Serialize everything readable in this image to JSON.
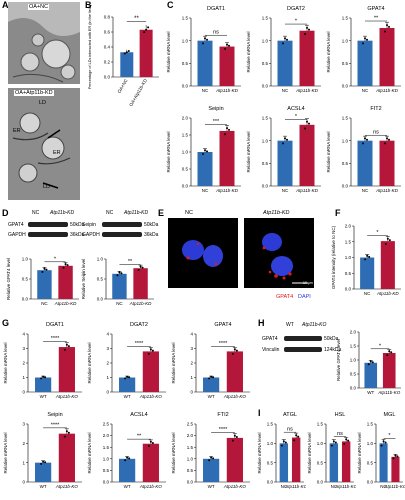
{
  "panels": {
    "A": "A",
    "B": "B",
    "C": "C",
    "D": "D",
    "E": "E",
    "F": "F",
    "G": "G",
    "H": "H",
    "I": "I"
  },
  "panelA": {
    "top_label": "OA+NC",
    "bottom_label": "OA+Atp11b-KD",
    "ld": "LD",
    "er": "ER"
  },
  "panelB": {
    "ylabel": "Percentage of LDs interacted with ER (in the field)",
    "sig": "**",
    "categories": [
      "OA+NC",
      "OA+Atp11b-KD"
    ],
    "values": [
      0.33,
      0.63
    ],
    "ylim": [
      0,
      0.8
    ],
    "ticks": [
      "0.0",
      "0.2",
      "0.4",
      "0.6",
      "0.8"
    ]
  },
  "panelE": {
    "left": "NC",
    "right": "Atp11b-KD",
    "gpat4": "GPAT4",
    "dapi": "DAPI",
    "scalebar": "10 µm"
  },
  "panelD": {
    "left": {
      "hdr_nc": "NC",
      "hdr_kd": "Atp11b-KD",
      "row1": "GPAT4",
      "row1_kda": "50kDa",
      "row2": "GAPDH",
      "row2_kda": "36kDa"
    },
    "right": {
      "hdr_nc": "NC",
      "hdr_kd": "Atp11b-KD",
      "row1": "Seipin",
      "row1_kda": "50kDa",
      "row2": "GAPDH",
      "row2_kda": "36kDa"
    }
  },
  "panelH": {
    "hdr_wt": "WT",
    "hdr_ko": "Atp11b-KO",
    "row1": "GPAT4",
    "row1_kda": "50kDa",
    "row2": "Vinculin",
    "row2_kda": "124kDa"
  },
  "chart_data": [
    {
      "panel": "C",
      "type": "bar",
      "title": "DGAT1",
      "ylabel": "Relative mRNA level",
      "categories": [
        "NC",
        "Atp11b-KD"
      ],
      "values": [
        1.0,
        0.87
      ],
      "ylim": [
        0,
        1.5
      ],
      "ticks": [
        "0.0",
        "0.5",
        "1.0",
        "1.5"
      ],
      "sig": "ns"
    },
    {
      "panel": "C",
      "type": "bar",
      "title": "DGAT2",
      "ylabel": "Relative mRNA level",
      "categories": [
        "NC",
        "Atp11b-KD"
      ],
      "values": [
        1.0,
        1.22
      ],
      "ylim": [
        0,
        1.5
      ],
      "ticks": [
        "0.0",
        "0.5",
        "1.0",
        "1.5"
      ],
      "sig": "*"
    },
    {
      "panel": "C",
      "type": "bar",
      "title": "GPAT4",
      "ylabel": "Relative mRNA level",
      "categories": [
        "NC",
        "Atp11b-KD"
      ],
      "values": [
        1.0,
        1.28
      ],
      "ylim": [
        0,
        1.5
      ],
      "ticks": [
        "0.0",
        "0.5",
        "1.0",
        "1.5"
      ],
      "sig": "**"
    },
    {
      "panel": "C",
      "type": "bar",
      "title": "Seipin",
      "ylabel": "Relative mRNA level",
      "categories": [
        "NC",
        "Atp11b-KD"
      ],
      "values": [
        1.0,
        1.62
      ],
      "ylim": [
        0,
        2.0
      ],
      "ticks": [
        "0.0",
        "0.5",
        "1.0",
        "1.5",
        "2.0"
      ],
      "sig": "***"
    },
    {
      "panel": "C",
      "type": "bar",
      "title": "ACSL4",
      "ylabel": "Relative mRNA level",
      "categories": [
        "NC",
        "Atp11b-KD"
      ],
      "values": [
        1.0,
        1.35
      ],
      "ylim": [
        0,
        1.5
      ],
      "ticks": [
        "0.0",
        "0.5",
        "1.0",
        "1.5"
      ],
      "sig": "*"
    },
    {
      "panel": "C",
      "type": "bar",
      "title": "FIT2",
      "ylabel": "Relative mRNA level",
      "categories": [
        "NC",
        "Atp11b-KD"
      ],
      "values": [
        1.0,
        1.0
      ],
      "ylim": [
        0,
        1.5
      ],
      "ticks": [
        "0.0",
        "0.5",
        "1.0",
        "1.5"
      ],
      "sig": "ns"
    },
    {
      "panel": "D",
      "type": "bar",
      "title": "",
      "ylabel": "Relative GPAT4 level",
      "categories": [
        "NC",
        "Atp11b-KD"
      ],
      "values": [
        0.72,
        0.83
      ],
      "ylim": [
        0,
        1.0
      ],
      "ticks": [
        "0.0",
        "0.5",
        "1.0"
      ],
      "sig": "*"
    },
    {
      "panel": "D",
      "type": "bar",
      "title": "",
      "ylabel": "Relative Seipin level",
      "categories": [
        "NC",
        "Atp11b-KD"
      ],
      "values": [
        0.63,
        0.77
      ],
      "ylim": [
        0,
        1.0
      ],
      "ticks": [
        "0.0",
        "0.5",
        "1.0"
      ],
      "sig": "**"
    },
    {
      "panel": "F",
      "type": "bar",
      "title": "",
      "ylabel": "GPAT4 intensity (relative to NC)",
      "categories": [
        "NC",
        "Atp11b-KD"
      ],
      "values": [
        1.0,
        1.52
      ],
      "ylim": [
        0,
        2.0
      ],
      "ticks": [
        "0.0",
        "0.5",
        "1.0",
        "1.5",
        "2.0"
      ],
      "sig": "*"
    },
    {
      "panel": "G",
      "type": "bar",
      "title": "DGAT1",
      "ylabel": "Relative mRNA level",
      "categories": [
        "WT",
        "Atp11b-KO"
      ],
      "values": [
        1.0,
        3.1
      ],
      "ylim": [
        0,
        4
      ],
      "ticks": [
        "0",
        "1",
        "2",
        "3",
        "4"
      ],
      "sig": "****"
    },
    {
      "panel": "G",
      "type": "bar",
      "title": "DGAT2",
      "ylabel": "Relative mRNA level",
      "categories": [
        "WT",
        "Atp11b-KO"
      ],
      "values": [
        1.0,
        2.8
      ],
      "ylim": [
        0,
        4
      ],
      "ticks": [
        "0",
        "1",
        "2",
        "3",
        "4"
      ],
      "sig": "****"
    },
    {
      "panel": "G",
      "type": "bar",
      "title": "GPAT4",
      "ylabel": "Relative mRNA level",
      "categories": [
        "WT",
        "Atp11b-KO"
      ],
      "values": [
        1.0,
        2.8
      ],
      "ylim": [
        0,
        4
      ],
      "ticks": [
        "0",
        "1",
        "2",
        "3",
        "4"
      ],
      "sig": "****"
    },
    {
      "panel": "G",
      "type": "bar",
      "title": "Seipin",
      "ylabel": "Relative mRNA level",
      "categories": [
        "WT",
        "Atp11b-KO"
      ],
      "values": [
        1.0,
        2.5
      ],
      "ylim": [
        0,
        3
      ],
      "ticks": [
        "0",
        "1",
        "2",
        "3"
      ],
      "sig": "****"
    },
    {
      "panel": "G",
      "type": "bar",
      "title": "ACSL4",
      "ylabel": "Relative mRNA level",
      "categories": [
        "WT",
        "Atp11b-KO"
      ],
      "values": [
        1.0,
        1.65
      ],
      "ylim": [
        0,
        2.5
      ],
      "ticks": [
        "0.0",
        "0.5",
        "1.0",
        "1.5",
        "2.0",
        "2.5"
      ],
      "sig": "**"
    },
    {
      "panel": "G",
      "type": "bar",
      "title": "FTI2",
      "ylabel": "Relative mRNA level",
      "categories": [
        "WT",
        "Atp11b-KO"
      ],
      "values": [
        1.0,
        1.9
      ],
      "ylim": [
        0,
        2.5
      ],
      "ticks": [
        "0.0",
        "0.5",
        "1.0",
        "1.5",
        "2.0",
        "2.5"
      ],
      "sig": "****"
    },
    {
      "panel": "H",
      "type": "bar",
      "title": "",
      "ylabel": "Relative GPAT4 level",
      "categories": [
        "WT",
        "Atp11b-KO"
      ],
      "values": [
        0.9,
        1.25
      ],
      "ylim": [
        0,
        2.0
      ],
      "ticks": [
        "0.0",
        "0.5",
        "1.0",
        "1.5",
        "2.0"
      ],
      "sig": "*"
    },
    {
      "panel": "I",
      "type": "bar",
      "title": "ATGL",
      "ylabel": "Relative mRNA level",
      "categories": [
        "NC",
        "Atp11b-KO"
      ],
      "values": [
        1.0,
        1.15
      ],
      "ylim": [
        0,
        1.5
      ],
      "ticks": [
        "0.0",
        "0.5",
        "1.0",
        "1.5"
      ],
      "sig": "ns"
    },
    {
      "panel": "I",
      "type": "bar",
      "title": "HSL",
      "ylabel": "Relative mRNA level",
      "categories": [
        "NC",
        "Atp11b-KO"
      ],
      "values": [
        1.0,
        1.05
      ],
      "ylim": [
        0,
        1.5
      ],
      "ticks": [
        "0.0",
        "0.5",
        "1.0",
        "1.5"
      ],
      "sig": "ns"
    },
    {
      "panel": "I",
      "type": "bar",
      "title": "MGL",
      "ylabel": "Relative mRNA level",
      "categories": [
        "NC",
        "Atp11b-KO"
      ],
      "values": [
        1.0,
        0.65
      ],
      "ylim": [
        0,
        1.5
      ],
      "ticks": [
        "0.0",
        "0.5",
        "1.0",
        "1.5"
      ],
      "sig": "*"
    }
  ],
  "colors": {
    "control": "#2e6db4",
    "treated": "#b5173b"
  }
}
